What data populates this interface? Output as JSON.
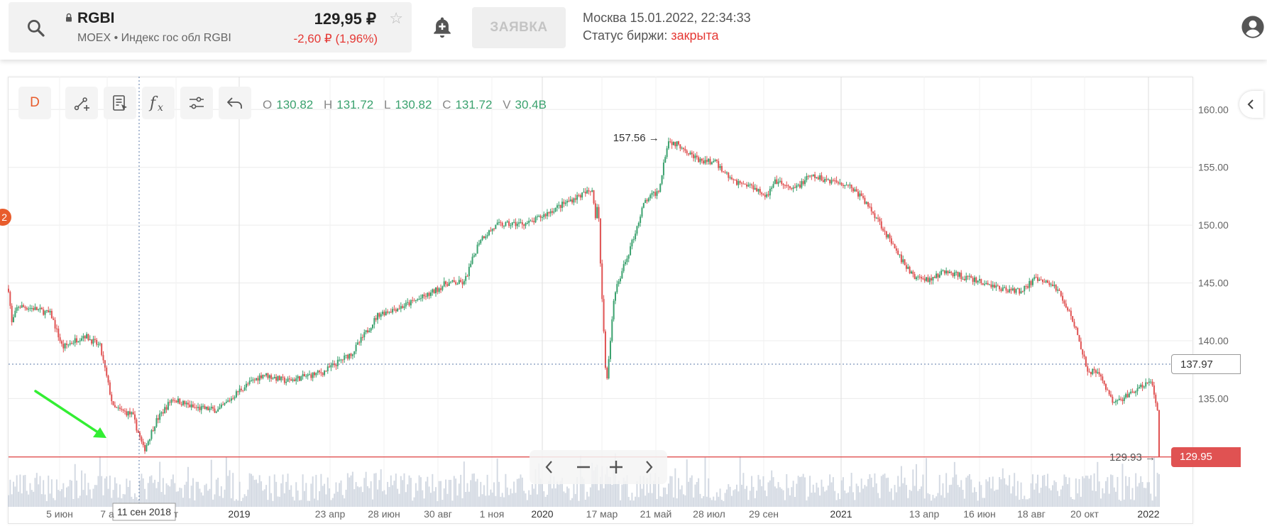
{
  "header": {
    "symbol": "RGBI",
    "exchange_line": "MOEX • Индекс гос обл RGBI",
    "price": "129,95 ₽",
    "change": "-2,60 ₽ (1,96%)",
    "order_button": "ЗАЯВКА",
    "city_time": "Москва 15.01.2022, 22:34:33",
    "status_label": "Статус биржи:",
    "status_value": "закрыта"
  },
  "toolbar": {
    "timeframe": "D",
    "ohlc": {
      "o_label": "O",
      "o": "130.82",
      "h_label": "H",
      "h": "131.72",
      "l_label": "L",
      "l": "130.82",
      "c_label": "C",
      "c": "131.72",
      "v_label": "V",
      "v": "30.4B"
    }
  },
  "alerts_badge": "2",
  "crosshair_date": "11 сен 2018",
  "crosshair_price": "137.97",
  "last_price_tag": "129.95",
  "colors": {
    "up": "#3aa16e",
    "down": "#e05252",
    "last_line": "#e05252",
    "arrow": "#33ee33",
    "volume": "#c5ced9"
  },
  "icons": [
    "search-icon",
    "lock-icon",
    "star-icon",
    "bell-plus-icon",
    "user-icon",
    "draw-line-icon",
    "note-icon",
    "function-icon",
    "settings-sliders-icon",
    "undo-icon",
    "chevron-left-icon",
    "minus-icon",
    "plus-icon",
    "chevron-right-icon"
  ],
  "chart_data": {
    "type": "candlestick",
    "ylim": [
      126,
      161
    ],
    "y_ticks": [
      "160.00",
      "155.00",
      "150.00",
      "145.00",
      "140.00",
      "135.00"
    ],
    "x_ticks": [
      "5 июн",
      "7 а",
      "т",
      "2019",
      "23 апр",
      "28 июн",
      "30 авг",
      "1 ноя",
      "2020",
      "17 мар",
      "21 май",
      "28 июл",
      "29 сен",
      "2021",
      "13 апр",
      "16 июн",
      "18 авг",
      "20 окт",
      "2022"
    ],
    "x_range": [
      "2018-04-01",
      "2022-01-20"
    ],
    "annotations": {
      "max_label": "157.56",
      "min_label": "129.93"
    },
    "trend": [
      [
        "2018-04-01",
        144.5
      ],
      [
        "2018-04-05",
        141.5
      ],
      [
        "2018-04-12",
        143.0
      ],
      [
        "2018-05-01",
        142.8
      ],
      [
        "2018-05-22",
        142.3
      ],
      [
        "2018-06-05",
        139.4
      ],
      [
        "2018-07-01",
        140.5
      ],
      [
        "2018-07-20",
        139.5
      ],
      [
        "2018-08-05",
        134.2
      ],
      [
        "2018-08-28",
        133.6
      ],
      [
        "2018-09-11",
        130.5
      ],
      [
        "2018-09-25",
        133.0
      ],
      [
        "2018-10-15",
        135.0
      ],
      [
        "2018-11-10",
        134.2
      ],
      [
        "2018-12-10",
        134.0
      ],
      [
        "2019-01-05",
        135.8
      ],
      [
        "2019-02-01",
        137.1
      ],
      [
        "2019-03-01",
        136.5
      ],
      [
        "2019-04-15",
        137.3
      ],
      [
        "2019-05-20",
        139.0
      ],
      [
        "2019-06-20",
        142.3
      ],
      [
        "2019-07-20",
        143.0
      ],
      [
        "2019-08-20",
        144.0
      ],
      [
        "2019-09-10",
        145.0
      ],
      [
        "2019-10-01",
        145.0
      ],
      [
        "2019-10-20",
        148.8
      ],
      [
        "2019-11-10",
        150.0
      ],
      [
        "2019-12-20",
        150.2
      ],
      [
        "2020-01-20",
        151.5
      ],
      [
        "2020-02-15",
        152.5
      ],
      [
        "2020-03-03",
        153.0
      ],
      [
        "2020-03-07",
        150.5
      ],
      [
        "2020-03-10",
        152.2
      ],
      [
        "2020-03-14",
        145.0
      ],
      [
        "2020-03-20",
        136.2
      ],
      [
        "2020-03-30",
        144.0
      ],
      [
        "2020-04-20",
        148.5
      ],
      [
        "2020-05-05",
        152.0
      ],
      [
        "2020-05-22",
        153.0
      ],
      [
        "2020-06-02",
        157.3
      ],
      [
        "2020-06-20",
        156.8
      ],
      [
        "2020-07-10",
        155.5
      ],
      [
        "2020-07-28",
        155.5
      ],
      [
        "2020-08-20",
        153.8
      ],
      [
        "2020-09-15",
        153.3
      ],
      [
        "2020-09-29",
        152.5
      ],
      [
        "2020-10-10",
        153.8
      ],
      [
        "2020-10-30",
        153.0
      ],
      [
        "2020-11-20",
        154.2
      ],
      [
        "2020-12-20",
        153.8
      ],
      [
        "2021-01-05",
        153.5
      ],
      [
        "2021-01-20",
        152.5
      ],
      [
        "2021-02-10",
        150.5
      ],
      [
        "2021-03-05",
        147.5
      ],
      [
        "2021-03-25",
        145.5
      ],
      [
        "2021-04-13",
        145.3
      ],
      [
        "2021-05-01",
        146.0
      ],
      [
        "2021-05-20",
        145.6
      ],
      [
        "2021-06-16",
        145.0
      ],
      [
        "2021-07-10",
        144.5
      ],
      [
        "2021-07-30",
        144.3
      ],
      [
        "2021-08-18",
        145.3
      ],
      [
        "2021-09-10",
        144.8
      ],
      [
        "2021-09-25",
        143.0
      ],
      [
        "2021-10-05",
        141.3
      ],
      [
        "2021-10-20",
        137.5
      ],
      [
        "2021-11-05",
        137.0
      ],
      [
        "2021-11-20",
        134.5
      ],
      [
        "2021-12-05",
        135.2
      ],
      [
        "2021-12-20",
        135.8
      ],
      [
        "2022-01-05",
        136.5
      ],
      [
        "2022-01-12",
        134.0
      ],
      [
        "2022-01-14",
        130.0
      ]
    ]
  }
}
